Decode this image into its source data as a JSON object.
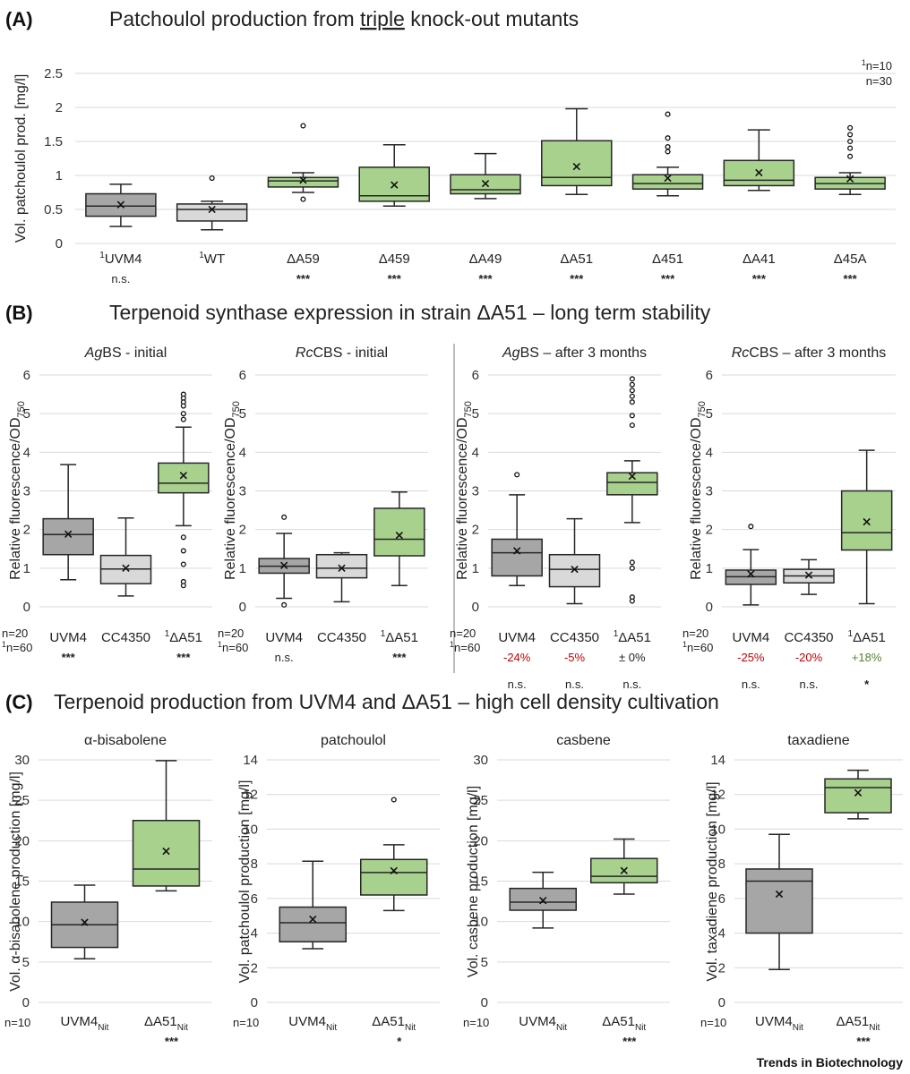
{
  "colors": {
    "gray": "#a6a6a6",
    "lightgray": "#d9d9d9",
    "green": "#a9d18e",
    "red": "#c00000",
    "darkgreen": "#548235",
    "box_stroke": "#262626"
  },
  "panels": [
    {
      "letter": "(A)",
      "title_before": "Patchoulol production from ",
      "title_underlined": "triple",
      "title_after": " knock-out mutants"
    },
    {
      "letter": "(B)",
      "title": "Terpenoid synthase expression in strain ΔA51 – long term stability"
    },
    {
      "letter": "(C)",
      "title": "Terpenoid production from UVM4 and ΔA51 – high cell density cultivation"
    }
  ],
  "panel_a_notes": {
    "n_superscript": "1",
    "n1": "n=10",
    "n2": "n=30"
  },
  "brand": "Trends in Biotechnology",
  "chart_data": [
    {
      "id": "A",
      "type": "box",
      "ylabel": "Vol. patchoulol prod. [mg/l]",
      "ylim": [
        0,
        2.5
      ],
      "ticks": [
        "0",
        "0.5",
        "1",
        "1.5",
        "2",
        "2.5"
      ],
      "categories": [
        {
          "sup": "1",
          "name": "UVM4",
          "sig": "n.s.",
          "color": "gray",
          "whisker_low": 0.25,
          "q1": 0.4,
          "median": 0.55,
          "q3": 0.73,
          "whisker_high": 0.87,
          "mean": 0.57,
          "outliers": []
        },
        {
          "sup": "1",
          "name": "WT",
          "sig": "",
          "color": "lightgray",
          "whisker_low": 0.2,
          "q1": 0.33,
          "median": 0.5,
          "q3": 0.58,
          "whisker_high": 0.62,
          "mean": 0.5,
          "outliers": [
            0.96
          ]
        },
        {
          "sup": "",
          "name": "ΔA59",
          "sig": "***",
          "color": "green",
          "whisker_low": 0.75,
          "q1": 0.83,
          "median": 0.92,
          "q3": 0.97,
          "whisker_high": 1.04,
          "mean": 0.93,
          "outliers": [
            1.73,
            0.65
          ]
        },
        {
          "sup": "",
          "name": "Δ459",
          "sig": "***",
          "color": "green",
          "whisker_low": 0.55,
          "q1": 0.62,
          "median": 0.7,
          "q3": 1.12,
          "whisker_high": 1.45,
          "mean": 0.86,
          "outliers": []
        },
        {
          "sup": "",
          "name": "ΔA49",
          "sig": "***",
          "color": "green",
          "whisker_low": 0.66,
          "q1": 0.73,
          "median": 0.79,
          "q3": 1.01,
          "whisker_high": 1.32,
          "mean": 0.88,
          "outliers": []
        },
        {
          "sup": "",
          "name": "ΔA51",
          "sig": "***",
          "color": "green",
          "whisker_low": 0.72,
          "q1": 0.85,
          "median": 0.97,
          "q3": 1.51,
          "whisker_high": 1.98,
          "mean": 1.13,
          "outliers": []
        },
        {
          "sup": "",
          "name": "Δ451",
          "sig": "***",
          "color": "green",
          "whisker_low": 0.7,
          "q1": 0.8,
          "median": 0.88,
          "q3": 1.01,
          "whisker_high": 1.12,
          "mean": 0.96,
          "outliers": [
            1.9,
            1.55,
            1.42,
            1.35
          ]
        },
        {
          "sup": "",
          "name": "ΔA41",
          "sig": "***",
          "color": "green",
          "whisker_low": 0.78,
          "q1": 0.85,
          "median": 0.93,
          "q3": 1.22,
          "whisker_high": 1.67,
          "mean": 1.04,
          "outliers": []
        },
        {
          "sup": "",
          "name": "Δ45A",
          "sig": "***",
          "color": "green",
          "whisker_low": 0.72,
          "q1": 0.8,
          "median": 0.88,
          "q3": 0.97,
          "whisker_high": 1.04,
          "mean": 0.95,
          "outliers": [
            1.7,
            1.6,
            1.5,
            1.4,
            1.28
          ]
        }
      ]
    },
    {
      "id": "B1",
      "type": "box",
      "title_italic": "Ag",
      "title_rest": "BS - initial",
      "ylabel": "Relative fluorescence/OD",
      "ylabel_sub": "750",
      "ylim": [
        0,
        6
      ],
      "ticks": [
        "0",
        "1",
        "2",
        "3",
        "4",
        "5",
        "6"
      ],
      "n_labels": [
        "n=20",
        "n=60"
      ],
      "n_sup": "1",
      "categories": [
        {
          "sup": "",
          "name": "UVM4",
          "sig": "***",
          "change": "",
          "change_color": "",
          "color": "gray",
          "whisker_low": 0.7,
          "q1": 1.35,
          "median": 1.87,
          "q3": 2.28,
          "whisker_high": 3.68,
          "mean": 1.88,
          "outliers": []
        },
        {
          "sup": "",
          "name": "CC4350",
          "sig": "",
          "change": "",
          "change_color": "",
          "color": "lightgray",
          "whisker_low": 0.28,
          "q1": 0.6,
          "median": 0.98,
          "q3": 1.33,
          "whisker_high": 2.3,
          "mean": 1.0,
          "outliers": []
        },
        {
          "sup": "1",
          "name": "ΔA51",
          "sig": "***",
          "change": "",
          "change_color": "",
          "color": "green",
          "whisker_low": 2.1,
          "q1": 2.95,
          "median": 3.2,
          "q3": 3.72,
          "whisker_high": 4.65,
          "mean": 3.4,
          "outliers": [
            5.5,
            5.4,
            5.3,
            5.2,
            5.0,
            4.85,
            1.8,
            1.45,
            1.1,
            0.65,
            0.55
          ]
        }
      ]
    },
    {
      "id": "B2",
      "type": "box",
      "title_italic": "Rc",
      "title_rest": "CBS - initial",
      "ylabel": "Relative fluorescence/OD",
      "ylabel_sub": "750",
      "ylim": [
        0,
        6
      ],
      "ticks": [
        "0",
        "1",
        "2",
        "3",
        "4",
        "5",
        "6"
      ],
      "n_labels": [
        "n=20",
        "n=60"
      ],
      "n_sup": "1",
      "categories": [
        {
          "sup": "",
          "name": "UVM4",
          "sig": "n.s.",
          "change": "",
          "change_color": "",
          "color": "gray",
          "whisker_low": 0.22,
          "q1": 0.87,
          "median": 1.05,
          "q3": 1.25,
          "whisker_high": 1.9,
          "mean": 1.07,
          "outliers": [
            2.32,
            0.05
          ]
        },
        {
          "sup": "",
          "name": "CC4350",
          "sig": "",
          "change": "",
          "change_color": "",
          "color": "lightgray",
          "whisker_low": 0.13,
          "q1": 0.75,
          "median": 1.0,
          "q3": 1.35,
          "whisker_high": 1.4,
          "mean": 1.0,
          "outliers": []
        },
        {
          "sup": "1",
          "name": "ΔA51",
          "sig": "***",
          "change": "",
          "change_color": "",
          "color": "green",
          "whisker_low": 0.55,
          "q1": 1.32,
          "median": 1.75,
          "q3": 2.55,
          "whisker_high": 2.97,
          "mean": 1.85,
          "outliers": []
        }
      ]
    },
    {
      "id": "B3",
      "type": "box",
      "title_italic": "Ag",
      "title_rest": "BS – after 3 months",
      "ylabel": "Relative fluorescence/OD",
      "ylabel_sub": "750",
      "ylim": [
        0,
        6
      ],
      "ticks": [
        "0",
        "1",
        "2",
        "3",
        "4",
        "5",
        "6"
      ],
      "n_labels": [
        "n=20",
        "n=60"
      ],
      "n_sup": "1",
      "categories": [
        {
          "sup": "",
          "name": "UVM4",
          "sig": "n.s.",
          "change": "-24%",
          "change_color": "red",
          "color": "gray",
          "whisker_low": 0.55,
          "q1": 0.8,
          "median": 1.4,
          "q3": 1.75,
          "whisker_high": 2.9,
          "mean": 1.45,
          "outliers": [
            3.42
          ]
        },
        {
          "sup": "",
          "name": "CC4350",
          "sig": "n.s.",
          "change": "-5%",
          "change_color": "red",
          "color": "lightgray",
          "whisker_low": 0.08,
          "q1": 0.52,
          "median": 0.97,
          "q3": 1.35,
          "whisker_high": 2.28,
          "mean": 0.97,
          "outliers": []
        },
        {
          "sup": "1",
          "name": "ΔA51",
          "sig": "n.s.",
          "change": "± 0%",
          "change_color": "black",
          "color": "green",
          "whisker_low": 2.18,
          "q1": 2.9,
          "median": 3.22,
          "q3": 3.47,
          "whisker_high": 3.78,
          "mean": 3.38,
          "outliers": [
            5.9,
            5.75,
            5.6,
            5.45,
            5.3,
            4.95,
            4.7,
            1.15,
            1.0,
            0.25,
            0.15
          ]
        }
      ]
    },
    {
      "id": "B4",
      "type": "box",
      "title_italic": "Rc",
      "title_rest": "CBS – after 3 months",
      "ylabel": "Relative fluorescence/OD",
      "ylabel_sub": "750",
      "ylim": [
        0,
        6
      ],
      "ticks": [
        "0",
        "1",
        "2",
        "3",
        "4",
        "5",
        "6"
      ],
      "n_labels": [
        "n=20",
        "n=60"
      ],
      "n_sup": "1",
      "categories": [
        {
          "sup": "",
          "name": "UVM4",
          "sig": "n.s.",
          "change": "-25%",
          "change_color": "red",
          "color": "gray",
          "whisker_low": 0.05,
          "q1": 0.58,
          "median": 0.78,
          "q3": 0.95,
          "whisker_high": 1.48,
          "mean": 0.85,
          "outliers": [
            2.08
          ]
        },
        {
          "sup": "",
          "name": "CC4350",
          "sig": "n.s.",
          "change": "-20%",
          "change_color": "red",
          "color": "lightgray",
          "whisker_low": 0.32,
          "q1": 0.62,
          "median": 0.8,
          "q3": 0.97,
          "whisker_high": 1.22,
          "mean": 0.82,
          "outliers": []
        },
        {
          "sup": "1",
          "name": "ΔA51",
          "sig": "*",
          "change": "+18%",
          "change_color": "darkgreen",
          "color": "green",
          "whisker_low": 0.08,
          "q1": 1.47,
          "median": 1.92,
          "q3": 3.0,
          "whisker_high": 4.05,
          "mean": 2.2,
          "outliers": []
        }
      ]
    },
    {
      "id": "C1",
      "type": "box",
      "title": "α-bisabolene",
      "ylabel": "Vol. α-bisabolene production [mg/l]",
      "ylim": [
        0,
        30
      ],
      "ticks": [
        "0",
        "5",
        "10",
        "15",
        "20",
        "25",
        "30"
      ],
      "n_label": "n=10",
      "sub": "Nit",
      "categories": [
        {
          "name": "UVM4",
          "sig": "",
          "color": "gray",
          "whisker_low": 5.4,
          "q1": 6.8,
          "median": 9.6,
          "q3": 12.4,
          "whisker_high": 14.5,
          "mean": 9.9,
          "outliers": []
        },
        {
          "name": "ΔA51",
          "sig": "***",
          "color": "green",
          "whisker_low": 13.8,
          "q1": 14.4,
          "median": 16.5,
          "q3": 22.5,
          "whisker_high": 29.9,
          "mean": 18.7,
          "outliers": []
        }
      ]
    },
    {
      "id": "C2",
      "type": "box",
      "title": "patchoulol",
      "ylabel": "Vol. patchoulol production [mg/l]",
      "ylim": [
        0,
        14
      ],
      "ticks": [
        "0",
        "2",
        "4",
        "6",
        "8",
        "10",
        "12",
        "14"
      ],
      "n_label": "n=10",
      "sub": "Nit",
      "categories": [
        {
          "name": "UVM4",
          "sig": "",
          "color": "gray",
          "whisker_low": 3.1,
          "q1": 3.5,
          "median": 4.6,
          "q3": 5.5,
          "whisker_high": 8.15,
          "mean": 4.8,
          "outliers": []
        },
        {
          "name": "ΔA51",
          "sig": "*",
          "color": "green",
          "whisker_low": 5.3,
          "q1": 6.2,
          "median": 7.5,
          "q3": 8.25,
          "whisker_high": 9.1,
          "mean": 7.6,
          "outliers": [
            11.7
          ]
        }
      ]
    },
    {
      "id": "C3",
      "type": "box",
      "title": "casbene",
      "ylabel": "Vol. casbene production [mg/l]",
      "ylim": [
        0,
        30
      ],
      "ticks": [
        "0",
        "5",
        "10",
        "15",
        "20",
        "25",
        "30"
      ],
      "n_label": "n=10",
      "sub": "Nit",
      "categories": [
        {
          "name": "UVM4",
          "sig": "",
          "color": "gray",
          "whisker_low": 9.2,
          "q1": 11.4,
          "median": 12.4,
          "q3": 14.1,
          "whisker_high": 16.1,
          "mean": 12.6,
          "outliers": []
        },
        {
          "name": "ΔA51",
          "sig": "***",
          "color": "green",
          "whisker_low": 13.4,
          "q1": 14.8,
          "median": 15.6,
          "q3": 17.8,
          "whisker_high": 20.2,
          "mean": 16.3,
          "outliers": []
        }
      ]
    },
    {
      "id": "C4",
      "type": "box",
      "title": "taxadiene",
      "ylabel": "Vol. taxadiene production [mg/l]",
      "ylim": [
        0,
        14
      ],
      "ticks": [
        "0",
        "2",
        "4",
        "6",
        "8",
        "10",
        "12",
        "14"
      ],
      "n_label": "n=10",
      "sub": "Nit",
      "categories": [
        {
          "name": "UVM4",
          "sig": "",
          "color": "gray",
          "whisker_low": 1.9,
          "q1": 4.0,
          "median": 7.0,
          "q3": 7.7,
          "whisker_high": 9.7,
          "mean": 6.25,
          "outliers": []
        },
        {
          "name": "ΔA51",
          "sig": "***",
          "color": "green",
          "whisker_low": 10.6,
          "q1": 10.95,
          "median": 12.4,
          "q3": 12.9,
          "whisker_high": 13.4,
          "mean": 12.1,
          "outliers": []
        }
      ]
    }
  ]
}
